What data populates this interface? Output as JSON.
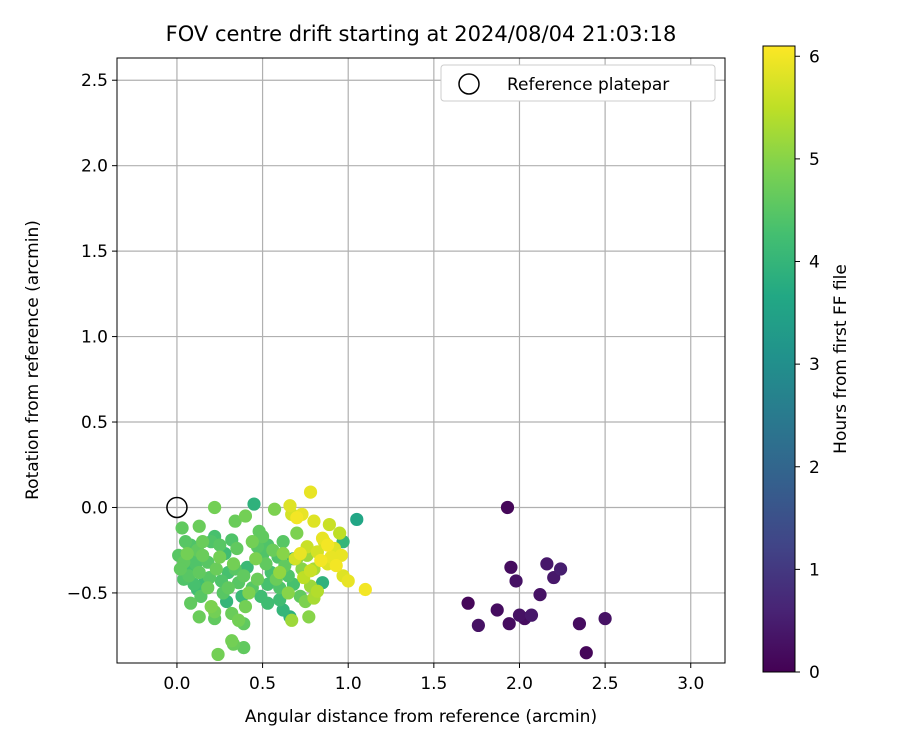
{
  "chart_data": {
    "type": "scatter",
    "title": "FOV centre drift starting at 2024/08/04 21:03:18",
    "xlabel": "Angular distance from reference (arcmin)",
    "ylabel": "Rotation from reference (arcmin)",
    "xlim": [
      -0.35,
      3.2
    ],
    "ylim": [
      -0.91,
      2.63
    ],
    "xticks": [
      "0.0",
      "0.5",
      "1.0",
      "1.5",
      "2.0",
      "2.5",
      "3.0"
    ],
    "xtick_values": [
      0,
      0.5,
      1.0,
      1.5,
      2.0,
      2.5,
      3.0
    ],
    "yticks": [
      "−0.5",
      "0.0",
      "0.5",
      "1.0",
      "1.5",
      "2.0",
      "2.5"
    ],
    "ytick_values": [
      -0.5,
      0,
      0.5,
      1.0,
      1.5,
      2.0,
      2.5
    ],
    "grid": true,
    "legend": {
      "placement": "top-right",
      "entries": [
        {
          "label": "Reference platepar",
          "marker": "open-circle"
        }
      ]
    },
    "reference_point": {
      "x": 0,
      "y": 0
    },
    "colorbar": {
      "label": "Hours from first FF file",
      "colormap": "viridis",
      "range": [
        0,
        6.1
      ],
      "ticks": [
        "0",
        "1",
        "2",
        "3",
        "4",
        "5",
        "6"
      ],
      "tick_values": [
        0,
        1,
        2,
        3,
        4,
        5,
        6
      ]
    },
    "points": [
      {
        "x": 1.93,
        "y": 0.0,
        "c": 0.1
      },
      {
        "x": 1.95,
        "y": -0.35,
        "c": 0.2
      },
      {
        "x": 1.98,
        "y": -0.43,
        "c": 0.3
      },
      {
        "x": 2.16,
        "y": -0.33,
        "c": 0.4
      },
      {
        "x": 2.24,
        "y": -0.36,
        "c": 0.5
      },
      {
        "x": 2.2,
        "y": -0.41,
        "c": 0.4
      },
      {
        "x": 2.12,
        "y": -0.51,
        "c": 0.3
      },
      {
        "x": 1.7,
        "y": -0.56,
        "c": 0.1
      },
      {
        "x": 1.87,
        "y": -0.6,
        "c": 0.2
      },
      {
        "x": 2.0,
        "y": -0.63,
        "c": 0.3
      },
      {
        "x": 2.07,
        "y": -0.63,
        "c": 0.4
      },
      {
        "x": 2.03,
        "y": -0.65,
        "c": 0.2
      },
      {
        "x": 1.76,
        "y": -0.69,
        "c": 0.3
      },
      {
        "x": 1.94,
        "y": -0.68,
        "c": 0.2
      },
      {
        "x": 2.5,
        "y": -0.65,
        "c": 0.3
      },
      {
        "x": 2.35,
        "y": -0.68,
        "c": 0.2
      },
      {
        "x": 2.39,
        "y": -0.85,
        "c": 0.1
      },
      {
        "x": 1.05,
        "y": -0.07,
        "c": 3.6
      },
      {
        "x": 0.45,
        "y": 0.02,
        "c": 3.9
      },
      {
        "x": 0.97,
        "y": -0.2,
        "c": 4.0
      },
      {
        "x": 0.68,
        "y": -0.3,
        "c": 3.8
      },
      {
        "x": 0.85,
        "y": -0.44,
        "c": 3.9
      },
      {
        "x": 0.38,
        "y": -0.52,
        "c": 4.1
      },
      {
        "x": 0.29,
        "y": -0.55,
        "c": 4.0
      },
      {
        "x": 0.53,
        "y": -0.56,
        "c": 4.2
      },
      {
        "x": 0.62,
        "y": -0.6,
        "c": 4.0
      },
      {
        "x": 0.66,
        "y": -0.64,
        "c": 3.9
      },
      {
        "x": 0.41,
        "y": -0.35,
        "c": 4.1
      },
      {
        "x": 0.03,
        "y": -0.12,
        "c": 4.6
      },
      {
        "x": 0.13,
        "y": -0.11,
        "c": 4.7
      },
      {
        "x": 0.22,
        "y": 0.0,
        "c": 4.8
      },
      {
        "x": 0.34,
        "y": -0.08,
        "c": 4.7
      },
      {
        "x": 0.4,
        "y": -0.05,
        "c": 4.8
      },
      {
        "x": 0.57,
        "y": -0.01,
        "c": 4.9
      },
      {
        "x": 0.48,
        "y": -0.14,
        "c": 4.6
      },
      {
        "x": 0.05,
        "y": -0.2,
        "c": 4.5
      },
      {
        "x": 0.08,
        "y": -0.22,
        "c": 4.4
      },
      {
        "x": 0.01,
        "y": -0.28,
        "c": 4.5
      },
      {
        "x": 0.04,
        "y": -0.32,
        "c": 4.6
      },
      {
        "x": 0.06,
        "y": -0.36,
        "c": 4.3
      },
      {
        "x": 0.09,
        "y": -0.3,
        "c": 4.4
      },
      {
        "x": 0.12,
        "y": -0.25,
        "c": 4.6
      },
      {
        "x": 0.15,
        "y": -0.28,
        "c": 4.7
      },
      {
        "x": 0.18,
        "y": -0.32,
        "c": 4.5
      },
      {
        "x": 0.2,
        "y": -0.2,
        "c": 4.4
      },
      {
        "x": 0.22,
        "y": -0.17,
        "c": 4.3
      },
      {
        "x": 0.25,
        "y": -0.22,
        "c": 4.5
      },
      {
        "x": 0.28,
        "y": -0.27,
        "c": 4.2
      },
      {
        "x": 0.32,
        "y": -0.19,
        "c": 4.4
      },
      {
        "x": 0.35,
        "y": -0.24,
        "c": 4.6
      },
      {
        "x": 0.04,
        "y": -0.42,
        "c": 4.4
      },
      {
        "x": 0.07,
        "y": -0.4,
        "c": 4.5
      },
      {
        "x": 0.1,
        "y": -0.45,
        "c": 4.3
      },
      {
        "x": 0.13,
        "y": -0.38,
        "c": 4.6
      },
      {
        "x": 0.16,
        "y": -0.44,
        "c": 4.2
      },
      {
        "x": 0.19,
        "y": -0.41,
        "c": 4.5
      },
      {
        "x": 0.23,
        "y": -0.36,
        "c": 4.7
      },
      {
        "x": 0.26,
        "y": -0.43,
        "c": 4.4
      },
      {
        "x": 0.3,
        "y": -0.38,
        "c": 4.3
      },
      {
        "x": 0.33,
        "y": -0.33,
        "c": 4.8
      },
      {
        "x": 0.36,
        "y": -0.44,
        "c": 4.5
      },
      {
        "x": 0.39,
        "y": -0.4,
        "c": 4.6
      },
      {
        "x": 0.12,
        "y": -0.48,
        "c": 4.2
      },
      {
        "x": 0.14,
        "y": -0.52,
        "c": 4.5
      },
      {
        "x": 0.18,
        "y": -0.47,
        "c": 4.7
      },
      {
        "x": 0.08,
        "y": -0.56,
        "c": 4.6
      },
      {
        "x": 0.2,
        "y": -0.58,
        "c": 4.9
      },
      {
        "x": 0.22,
        "y": -0.61,
        "c": 4.8
      },
      {
        "x": 0.13,
        "y": -0.64,
        "c": 4.7
      },
      {
        "x": 0.22,
        "y": -0.65,
        "c": 4.6
      },
      {
        "x": 0.32,
        "y": -0.62,
        "c": 4.7
      },
      {
        "x": 0.36,
        "y": -0.66,
        "c": 4.8
      },
      {
        "x": 0.39,
        "y": -0.68,
        "c": 4.6
      },
      {
        "x": 0.32,
        "y": -0.78,
        "c": 4.8
      },
      {
        "x": 0.33,
        "y": -0.8,
        "c": 4.7
      },
      {
        "x": 0.39,
        "y": -0.82,
        "c": 4.6
      },
      {
        "x": 0.24,
        "y": -0.86,
        "c": 4.8
      },
      {
        "x": 0.44,
        "y": -0.47,
        "c": 4.5
      },
      {
        "x": 0.47,
        "y": -0.42,
        "c": 4.7
      },
      {
        "x": 0.5,
        "y": -0.28,
        "c": 4.4
      },
      {
        "x": 0.52,
        "y": -0.33,
        "c": 4.6
      },
      {
        "x": 0.55,
        "y": -0.38,
        "c": 4.3
      },
      {
        "x": 0.58,
        "y": -0.42,
        "c": 4.7
      },
      {
        "x": 0.6,
        "y": -0.47,
        "c": 4.4
      },
      {
        "x": 0.6,
        "y": -0.54,
        "c": 4.2
      },
      {
        "x": 0.44,
        "y": -0.2,
        "c": 4.8
      },
      {
        "x": 0.47,
        "y": -0.23,
        "c": 4.5
      },
      {
        "x": 0.5,
        "y": -0.17,
        "c": 4.6
      },
      {
        "x": 0.53,
        "y": -0.22,
        "c": 4.4
      },
      {
        "x": 0.63,
        "y": -0.34,
        "c": 4.6
      },
      {
        "x": 0.65,
        "y": -0.4,
        "c": 4.4
      },
      {
        "x": 0.68,
        "y": -0.45,
        "c": 4.3
      },
      {
        "x": 0.7,
        "y": -0.15,
        "c": 4.9
      },
      {
        "x": 0.72,
        "y": -0.52,
        "c": 4.6
      },
      {
        "x": 0.75,
        "y": -0.55,
        "c": 4.9
      },
      {
        "x": 0.77,
        "y": -0.64,
        "c": 5.0
      },
      {
        "x": 0.67,
        "y": -0.66,
        "c": 5.2
      },
      {
        "x": 0.4,
        "y": -0.58,
        "c": 4.8
      },
      {
        "x": 0.42,
        "y": -0.5,
        "c": 4.9
      },
      {
        "x": 0.3,
        "y": -0.47,
        "c": 4.6
      },
      {
        "x": 0.27,
        "y": -0.5,
        "c": 4.5
      },
      {
        "x": 0.25,
        "y": -0.29,
        "c": 4.8
      },
      {
        "x": 0.15,
        "y": -0.2,
        "c": 4.7
      },
      {
        "x": 0.11,
        "y": -0.33,
        "c": 4.4
      },
      {
        "x": 0.02,
        "y": -0.36,
        "c": 4.6
      },
      {
        "x": 0.06,
        "y": -0.27,
        "c": 4.8
      },
      {
        "x": 0.34,
        "y": -0.36,
        "c": 4.5
      },
      {
        "x": 0.46,
        "y": -0.3,
        "c": 4.9
      },
      {
        "x": 0.56,
        "y": -0.25,
        "c": 4.7
      },
      {
        "x": 0.62,
        "y": -0.2,
        "c": 4.5
      },
      {
        "x": 0.59,
        "y": -0.29,
        "c": 4.4
      },
      {
        "x": 0.53,
        "y": -0.45,
        "c": 4.3
      },
      {
        "x": 0.49,
        "y": -0.52,
        "c": 4.2
      },
      {
        "x": 0.7,
        "y": -0.3,
        "c": 5.1
      },
      {
        "x": 0.73,
        "y": -0.36,
        "c": 5.0
      },
      {
        "x": 0.76,
        "y": -0.28,
        "c": 5.2
      },
      {
        "x": 0.8,
        "y": -0.36,
        "c": 5.3
      },
      {
        "x": 0.78,
        "y": -0.46,
        "c": 5.2
      },
      {
        "x": 0.82,
        "y": -0.49,
        "c": 5.4
      },
      {
        "x": 0.8,
        "y": -0.53,
        "c": 5.3
      },
      {
        "x": 0.65,
        "y": -0.5,
        "c": 5.0
      },
      {
        "x": 0.6,
        "y": -0.38,
        "c": 5.1
      },
      {
        "x": 0.62,
        "y": -0.27,
        "c": 5.0
      },
      {
        "x": 0.66,
        "y": 0.01,
        "c": 5.8
      },
      {
        "x": 0.78,
        "y": 0.09,
        "c": 5.9
      },
      {
        "x": 0.67,
        "y": -0.04,
        "c": 5.7
      },
      {
        "x": 0.7,
        "y": -0.06,
        "c": 6.0
      },
      {
        "x": 0.73,
        "y": -0.04,
        "c": 5.9
      },
      {
        "x": 0.8,
        "y": -0.08,
        "c": 5.8
      },
      {
        "x": 0.89,
        "y": -0.1,
        "c": 5.6
      },
      {
        "x": 0.95,
        "y": -0.15,
        "c": 5.5
      },
      {
        "x": 0.85,
        "y": -0.18,
        "c": 5.9
      },
      {
        "x": 0.88,
        "y": -0.22,
        "c": 6.0
      },
      {
        "x": 0.92,
        "y": -0.24,
        "c": 5.8
      },
      {
        "x": 0.96,
        "y": -0.28,
        "c": 5.9
      },
      {
        "x": 0.82,
        "y": -0.26,
        "c": 5.7
      },
      {
        "x": 0.84,
        "y": -0.31,
        "c": 6.0
      },
      {
        "x": 0.88,
        "y": -0.33,
        "c": 5.8
      },
      {
        "x": 0.76,
        "y": -0.23,
        "c": 5.6
      },
      {
        "x": 0.72,
        "y": -0.27,
        "c": 5.9
      },
      {
        "x": 0.69,
        "y": -0.3,
        "c": 5.7
      },
      {
        "x": 0.9,
        "y": -0.29,
        "c": 5.9
      },
      {
        "x": 0.93,
        "y": -0.34,
        "c": 6.0
      },
      {
        "x": 0.97,
        "y": -0.4,
        "c": 5.8
      },
      {
        "x": 1.0,
        "y": -0.43,
        "c": 5.9
      },
      {
        "x": 1.1,
        "y": -0.48,
        "c": 6.0
      },
      {
        "x": 0.78,
        "y": -0.37,
        "c": 5.6
      },
      {
        "x": 0.74,
        "y": -0.41,
        "c": 5.5
      },
      {
        "x": 0.86,
        "y": -0.2,
        "c": 5.7
      }
    ]
  }
}
